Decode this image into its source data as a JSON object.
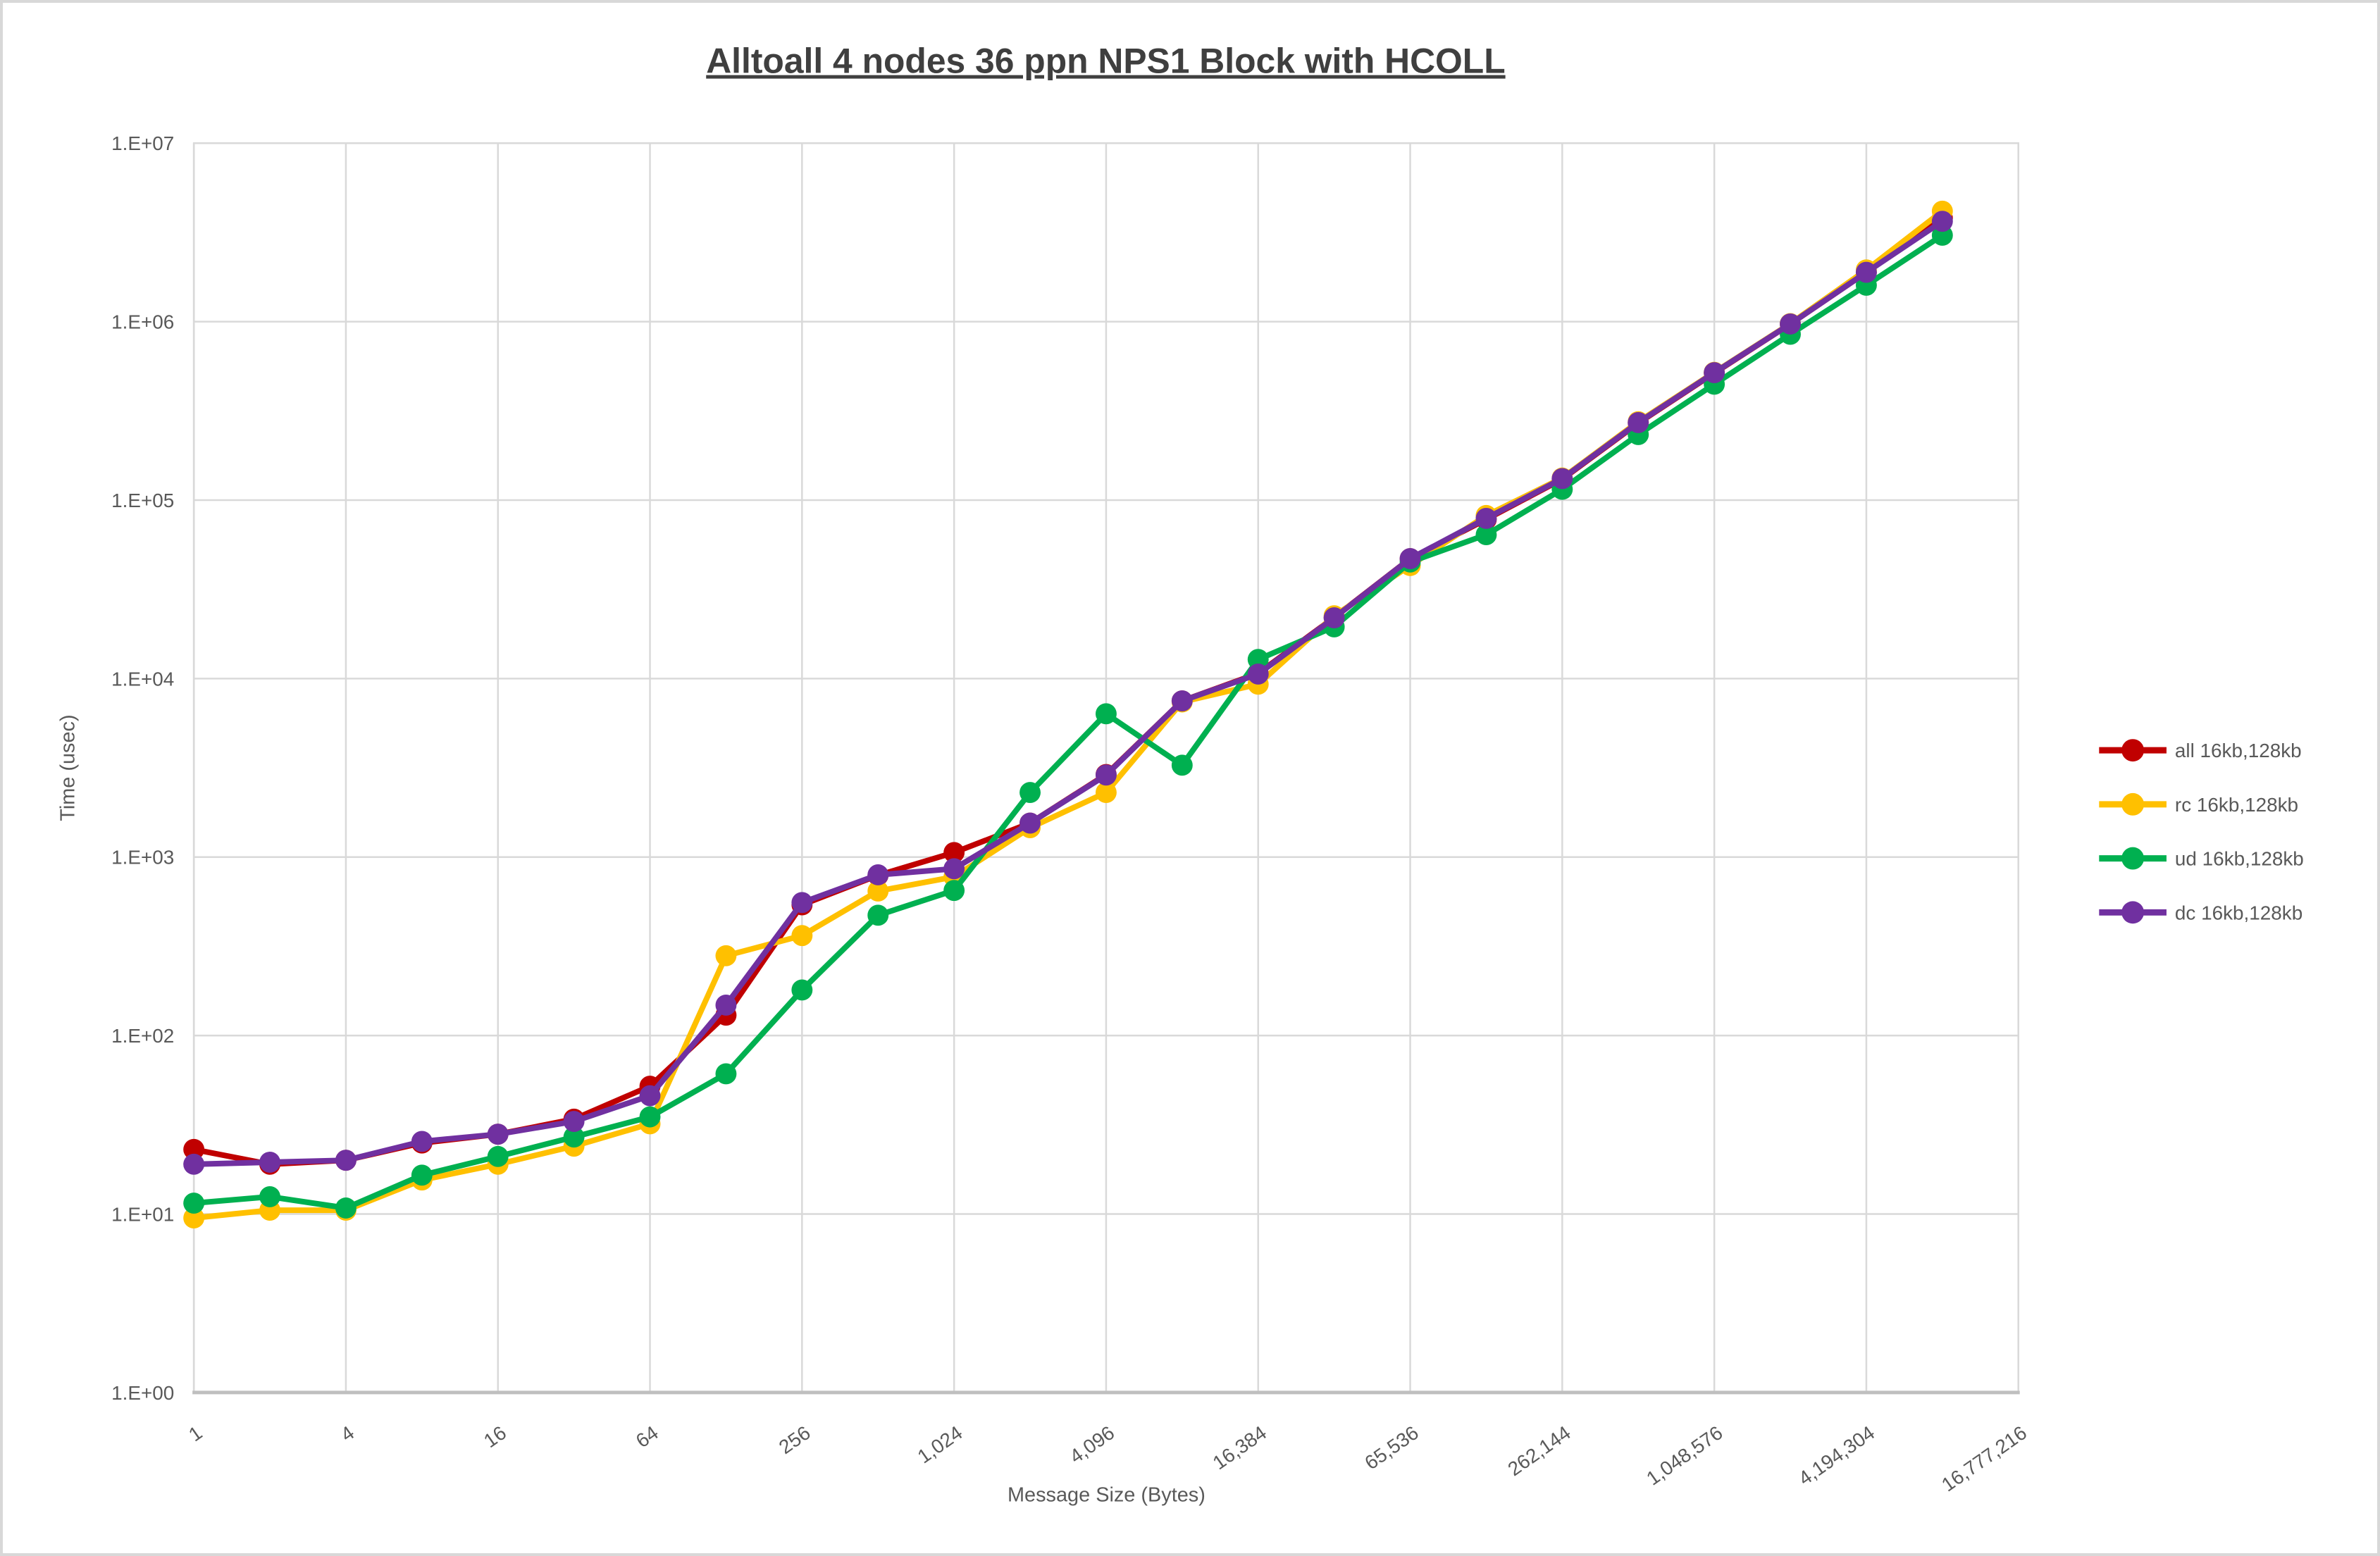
{
  "page": {
    "background": "#FFFFFF",
    "frame_color": "#D8D8D8",
    "title_color": "#3F3F3F",
    "axis_text_color": "#595959",
    "gridline_color": "#D9D9D9",
    "axis_line_color": "#BFBFBF"
  },
  "chart_data": {
    "type": "line",
    "title": "Alltoall 4 nodes 36 ppn NPS1 Block with HCOLL",
    "xlabel": "Message Size (Bytes)",
    "ylabel": "Time (usec)",
    "x_scale": "log2",
    "y_scale": "log10",
    "ylim": [
      1,
      10000000
    ],
    "xlim": [
      1,
      16777216
    ],
    "grid": "both",
    "legend_position": "right",
    "y_tick_labels": [
      "1.E+00",
      "1.E+01",
      "1.E+02",
      "1.E+03",
      "1.E+04",
      "1.E+05",
      "1.E+06",
      "1.E+07"
    ],
    "x_tick_labels": [
      "1",
      "4",
      "16",
      "64",
      "256",
      "1,024",
      "4,096",
      "16,384",
      "65,536",
      "262,144",
      "1,048,576",
      "4,194,304",
      "16,777,216"
    ],
    "x": [
      1,
      2,
      4,
      8,
      16,
      32,
      64,
      128,
      256,
      512,
      1024,
      2048,
      4096,
      8192,
      16384,
      32768,
      65536,
      131072,
      262144,
      524288,
      1048576,
      2097152,
      4194304,
      8388608
    ],
    "series": [
      {
        "name": "all 16kb,128kb",
        "color": "#C00000",
        "values": [
          23,
          19,
          20,
          25,
          28,
          34,
          52,
          130,
          540,
          790,
          1060,
          1550,
          2900,
          7500,
          10700,
          22000,
          47000,
          78000,
          131000,
          270000,
          515000,
          970000,
          1890000,
          3800000
        ]
      },
      {
        "name": "rc 16kb,128kb",
        "color": "#FFC000",
        "values": [
          9.5,
          10.5,
          10.5,
          15.5,
          19,
          24,
          32,
          280,
          363,
          645,
          775,
          1460,
          2300,
          7400,
          9300,
          22500,
          43000,
          82000,
          133000,
          275000,
          520000,
          975000,
          1950000,
          4160000
        ]
      },
      {
        "name": "ud 16kb,128kb",
        "color": "#00B050",
        "values": [
          11.5,
          12.5,
          10.8,
          16.5,
          21,
          27,
          35,
          61,
          180,
          472,
          650,
          2300,
          6350,
          3270,
          12800,
          19500,
          45000,
          64000,
          115000,
          233000,
          446000,
          850000,
          1600000,
          3050000
        ]
      },
      {
        "name": "dc 16kb,128kb",
        "color": "#7030A0",
        "values": [
          19,
          19.5,
          20,
          25.5,
          28,
          33,
          46,
          148,
          556,
          795,
          860,
          1550,
          2880,
          7500,
          10600,
          21900,
          47000,
          79000,
          132000,
          272000,
          518000,
          970000,
          1890000,
          3650000
        ]
      }
    ]
  }
}
